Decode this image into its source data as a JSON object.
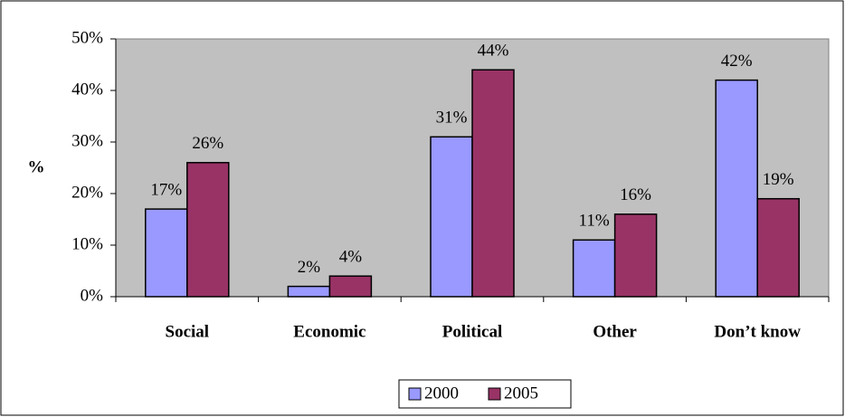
{
  "chart_data": {
    "type": "bar",
    "ylabel": "%",
    "categories": [
      "Social",
      "Economic",
      "Political",
      "Other",
      "Don’t know"
    ],
    "series": [
      {
        "name": "2000",
        "color": "#9999ff",
        "values": [
          17,
          2,
          31,
          11,
          42
        ],
        "value_labels": [
          "17%",
          "2%",
          "31%",
          "11%",
          "42%"
        ]
      },
      {
        "name": "2005",
        "color": "#993366",
        "values": [
          26,
          4,
          44,
          16,
          19
        ],
        "value_labels": [
          "26%",
          "4%",
          "44%",
          "16%",
          "19%"
        ]
      }
    ],
    "ylim": [
      0,
      50
    ],
    "yticks": [
      {
        "value": 0,
        "label": "0%"
      },
      {
        "value": 10,
        "label": "10%"
      },
      {
        "value": 20,
        "label": "20%"
      },
      {
        "value": 30,
        "label": "30%"
      },
      {
        "value": 40,
        "label": "40%"
      },
      {
        "value": 50,
        "label": "50%"
      }
    ],
    "grid": false,
    "legend": "bottom"
  }
}
